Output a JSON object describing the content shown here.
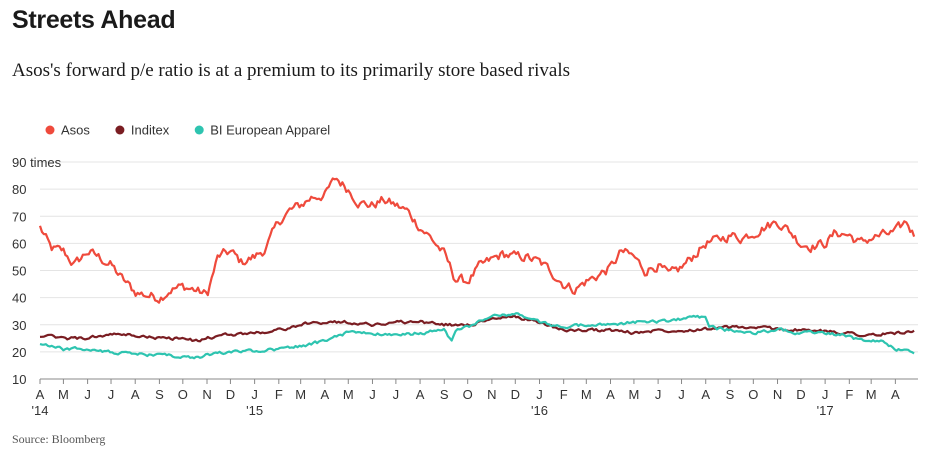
{
  "title": "Streets Ahead",
  "subtitle": "Asos's forward p/e ratio is at a premium to its primarily store based rivals",
  "source": "Source: Bloomberg",
  "chart_data": {
    "type": "line",
    "y_unit": "times",
    "ylim": [
      10,
      90
    ],
    "yticks": [
      10,
      20,
      30,
      40,
      50,
      60,
      70,
      80,
      90
    ],
    "grid": true,
    "legend_position": "top-left",
    "x_range": [
      "2014-04-01",
      "2017-04-30"
    ],
    "month_labels": [
      "A",
      "M",
      "J",
      "J",
      "A",
      "S",
      "O",
      "N",
      "D",
      "J",
      "F",
      "M",
      "A",
      "M",
      "J",
      "J",
      "A",
      "S",
      "O",
      "N",
      "D",
      "J",
      "F",
      "M",
      "A",
      "M",
      "J",
      "J",
      "A",
      "S",
      "O",
      "N",
      "D",
      "J",
      "F",
      "M",
      "A"
    ],
    "year_labels": [
      {
        "month": "2014-04",
        "label": "'14"
      },
      {
        "month": "2015-01",
        "label": "'15"
      },
      {
        "month": "2016-01",
        "label": "'16"
      },
      {
        "month": "2017-01",
        "label": "'17"
      }
    ],
    "series": [
      {
        "name": "Asos",
        "color": "#ef4a3c",
        "points": [
          [
            "2014-04-01",
            66
          ],
          [
            "2014-04-15",
            58
          ],
          [
            "2014-05-01",
            57
          ],
          [
            "2014-05-15",
            52
          ],
          [
            "2014-06-01",
            57
          ],
          [
            "2014-06-15",
            55
          ],
          [
            "2014-07-01",
            52
          ],
          [
            "2014-07-15",
            47
          ],
          [
            "2014-08-01",
            42
          ],
          [
            "2014-08-15",
            41
          ],
          [
            "2014-09-01",
            40
          ],
          [
            "2014-09-15",
            43
          ],
          [
            "2014-10-01",
            44
          ],
          [
            "2014-10-15",
            43
          ],
          [
            "2014-11-01",
            41
          ],
          [
            "2014-11-15",
            55
          ],
          [
            "2014-12-01",
            57
          ],
          [
            "2014-12-15",
            53
          ],
          [
            "2015-01-01",
            55
          ],
          [
            "2015-01-15",
            58
          ],
          [
            "2015-02-01",
            68
          ],
          [
            "2015-02-15",
            72
          ],
          [
            "2015-03-01",
            74
          ],
          [
            "2015-03-15",
            77
          ],
          [
            "2015-04-01",
            78
          ],
          [
            "2015-04-15",
            84
          ],
          [
            "2015-05-01",
            80
          ],
          [
            "2015-05-15",
            75
          ],
          [
            "2015-06-01",
            74
          ],
          [
            "2015-06-15",
            76
          ],
          [
            "2015-07-01",
            74
          ],
          [
            "2015-07-15",
            72
          ],
          [
            "2015-08-01",
            66
          ],
          [
            "2015-08-15",
            62
          ],
          [
            "2015-09-01",
            56
          ],
          [
            "2015-09-15",
            47
          ],
          [
            "2015-10-01",
            46
          ],
          [
            "2015-10-15",
            51
          ],
          [
            "2015-11-01",
            54
          ],
          [
            "2015-11-15",
            56
          ],
          [
            "2015-12-01",
            55
          ],
          [
            "2015-12-15",
            55
          ],
          [
            "2016-01-01",
            53
          ],
          [
            "2016-01-15",
            50
          ],
          [
            "2016-02-01",
            45
          ],
          [
            "2016-02-15",
            43
          ],
          [
            "2016-03-01",
            46
          ],
          [
            "2016-03-15",
            48
          ],
          [
            "2016-04-01",
            51
          ],
          [
            "2016-04-15",
            57
          ],
          [
            "2016-05-01",
            55
          ],
          [
            "2016-05-15",
            50
          ],
          [
            "2016-06-01",
            52
          ],
          [
            "2016-06-15",
            48
          ],
          [
            "2016-07-01",
            51
          ],
          [
            "2016-07-15",
            55
          ],
          [
            "2016-08-01",
            60
          ],
          [
            "2016-08-15",
            61
          ],
          [
            "2016-09-01",
            63
          ],
          [
            "2016-09-15",
            62
          ],
          [
            "2016-10-01",
            64
          ],
          [
            "2016-10-15",
            66
          ],
          [
            "2016-11-01",
            68
          ],
          [
            "2016-11-15",
            65
          ],
          [
            "2016-12-01",
            60
          ],
          [
            "2016-12-15",
            59
          ],
          [
            "2017-01-01",
            60
          ],
          [
            "2017-01-15",
            64
          ],
          [
            "2017-02-01",
            63
          ],
          [
            "2017-02-15",
            60
          ],
          [
            "2017-03-01",
            62
          ],
          [
            "2017-03-15",
            63
          ],
          [
            "2017-04-01",
            64
          ],
          [
            "2017-04-15",
            68
          ],
          [
            "2017-04-25",
            63
          ]
        ]
      },
      {
        "name": "Inditex",
        "color": "#7a1d22",
        "points": [
          [
            "2014-04-01",
            26
          ],
          [
            "2014-05-01",
            25
          ],
          [
            "2014-06-01",
            25
          ],
          [
            "2014-07-01",
            26.5
          ],
          [
            "2014-08-01",
            26
          ],
          [
            "2014-09-01",
            25
          ],
          [
            "2014-10-01",
            25
          ],
          [
            "2014-10-15",
            24
          ],
          [
            "2014-11-01",
            25
          ],
          [
            "2014-12-01",
            26.5
          ],
          [
            "2015-01-01",
            27
          ],
          [
            "2015-02-01",
            28
          ],
          [
            "2015-03-01",
            30
          ],
          [
            "2015-04-01",
            31
          ],
          [
            "2015-05-01",
            31
          ],
          [
            "2015-06-01",
            30
          ],
          [
            "2015-07-01",
            31
          ],
          [
            "2015-08-01",
            31
          ],
          [
            "2015-09-01",
            30
          ],
          [
            "2015-10-01",
            30
          ],
          [
            "2015-11-01",
            32
          ],
          [
            "2015-12-01",
            33
          ],
          [
            "2016-01-01",
            31
          ],
          [
            "2016-02-01",
            28
          ],
          [
            "2016-03-01",
            28
          ],
          [
            "2016-04-01",
            28
          ],
          [
            "2016-05-01",
            27
          ],
          [
            "2016-06-01",
            28
          ],
          [
            "2016-07-01",
            28
          ],
          [
            "2016-08-01",
            28.5
          ],
          [
            "2016-09-01",
            29
          ],
          [
            "2016-10-01",
            29
          ],
          [
            "2016-11-01",
            28.5
          ],
          [
            "2016-12-01",
            28
          ],
          [
            "2017-01-01",
            27.5
          ],
          [
            "2017-02-01",
            27
          ],
          [
            "2017-03-01",
            26
          ],
          [
            "2017-04-01",
            27
          ],
          [
            "2017-04-25",
            27.5
          ]
        ]
      },
      {
        "name": "BI European Apparel",
        "color": "#2ec4b0",
        "points": [
          [
            "2014-04-01",
            23
          ],
          [
            "2014-05-01",
            21
          ],
          [
            "2014-06-01",
            21
          ],
          [
            "2014-07-01",
            20
          ],
          [
            "2014-08-01",
            19
          ],
          [
            "2014-09-01",
            19
          ],
          [
            "2014-10-01",
            18
          ],
          [
            "2014-10-15",
            17.5
          ],
          [
            "2014-11-01",
            19
          ],
          [
            "2014-12-01",
            20
          ],
          [
            "2015-01-01",
            20.5
          ],
          [
            "2015-02-01",
            21
          ],
          [
            "2015-03-01",
            22
          ],
          [
            "2015-04-01",
            24
          ],
          [
            "2015-04-15",
            26
          ],
          [
            "2015-05-01",
            27
          ],
          [
            "2015-06-01",
            27
          ],
          [
            "2015-07-01",
            26
          ],
          [
            "2015-08-01",
            27
          ],
          [
            "2015-09-01",
            28
          ],
          [
            "2015-09-10",
            24
          ],
          [
            "2015-09-15",
            28
          ],
          [
            "2015-10-01",
            29
          ],
          [
            "2015-10-15",
            31
          ],
          [
            "2015-11-01",
            33
          ],
          [
            "2015-12-01",
            34
          ],
          [
            "2016-01-01",
            31
          ],
          [
            "2016-02-01",
            29
          ],
          [
            "2016-03-01",
            30
          ],
          [
            "2016-04-01",
            30
          ],
          [
            "2016-05-01",
            31
          ],
          [
            "2016-06-01",
            31
          ],
          [
            "2016-07-01",
            32
          ],
          [
            "2016-07-20",
            33
          ],
          [
            "2016-08-01",
            33
          ],
          [
            "2016-08-05",
            29
          ],
          [
            "2016-09-01",
            28
          ],
          [
            "2016-10-01",
            27
          ],
          [
            "2016-11-01",
            28
          ],
          [
            "2016-12-01",
            27
          ],
          [
            "2017-01-01",
            27
          ],
          [
            "2017-02-01",
            26
          ],
          [
            "2017-02-15",
            24
          ],
          [
            "2017-03-15",
            24
          ],
          [
            "2017-04-01",
            21
          ],
          [
            "2017-04-25",
            20
          ]
        ]
      }
    ]
  }
}
